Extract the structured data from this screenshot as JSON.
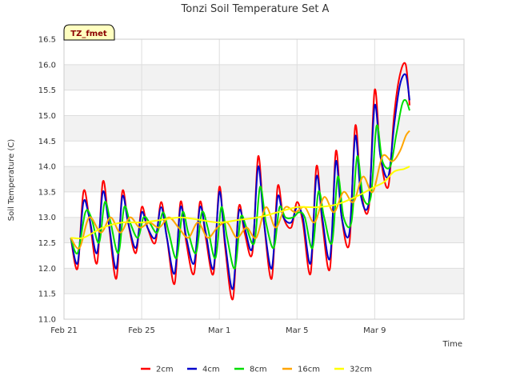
{
  "chart_data": {
    "type": "line",
    "title": "Tonzi Soil Temperature Set A",
    "xlabel": "Time",
    "ylabel": "Soil Temperature (C)",
    "badge": "TZ_fmet",
    "xlim": [
      0,
      20.6
    ],
    "ylim": [
      11.0,
      16.5
    ],
    "y_ticks": [
      11.0,
      11.5,
      12.0,
      12.5,
      13.0,
      13.5,
      14.0,
      14.5,
      15.0,
      15.5,
      16.0,
      16.5
    ],
    "x_ticks": [
      {
        "value": 0,
        "label": "Feb 21"
      },
      {
        "value": 4,
        "label": "Feb 25"
      },
      {
        "value": 8,
        "label": "Mar 1"
      },
      {
        "value": 12,
        "label": "Mar 5"
      },
      {
        "value": 16,
        "label": "Mar 9"
      }
    ],
    "grid": true,
    "legend_position": "bottom",
    "series": [
      {
        "name": "2cm",
        "color": "#ff0000",
        "x": [
          0.35,
          0.7,
          1.0,
          1.3,
          1.7,
          2.0,
          2.3,
          2.7,
          3.0,
          3.3,
          3.7,
          4.0,
          4.3,
          4.7,
          5.0,
          5.3,
          5.7,
          6.0,
          6.3,
          6.7,
          7.0,
          7.3,
          7.7,
          8.0,
          8.3,
          8.7,
          9.0,
          9.3,
          9.7,
          10.0,
          10.3,
          10.7,
          11.0,
          11.3,
          11.7,
          12.0,
          12.3,
          12.7,
          13.0,
          13.3,
          13.7,
          14.0,
          14.3,
          14.7,
          15.0,
          15.3,
          15.7,
          16.0,
          16.3,
          16.7,
          17.0,
          17.3,
          17.6,
          17.8
        ],
        "values": [
          12.6,
          12.0,
          13.5,
          13.0,
          12.1,
          13.7,
          12.9,
          11.8,
          13.5,
          12.9,
          12.3,
          13.2,
          12.8,
          12.5,
          13.3,
          12.6,
          11.7,
          13.3,
          12.5,
          11.9,
          13.3,
          12.6,
          11.9,
          13.6,
          12.4,
          11.4,
          13.2,
          12.7,
          12.3,
          14.2,
          12.9,
          11.8,
          13.6,
          13.0,
          12.8,
          13.3,
          12.9,
          11.9,
          14.0,
          12.9,
          12.0,
          14.3,
          13.0,
          12.5,
          14.8,
          13.5,
          13.2,
          15.5,
          14.2,
          13.6,
          15.0,
          15.8,
          16.0,
          15.2
        ]
      },
      {
        "name": "4cm",
        "color": "#0000cc",
        "x": [
          0.35,
          0.7,
          1.0,
          1.3,
          1.7,
          2.0,
          2.3,
          2.7,
          3.0,
          3.3,
          3.7,
          4.0,
          4.3,
          4.7,
          5.0,
          5.3,
          5.7,
          6.0,
          6.3,
          6.7,
          7.0,
          7.3,
          7.7,
          8.0,
          8.3,
          8.7,
          9.0,
          9.3,
          9.7,
          10.0,
          10.3,
          10.7,
          11.0,
          11.3,
          11.7,
          12.0,
          12.3,
          12.7,
          13.0,
          13.3,
          13.7,
          14.0,
          14.3,
          14.7,
          15.0,
          15.3,
          15.7,
          16.0,
          16.3,
          16.7,
          17.0,
          17.3,
          17.6,
          17.8
        ],
        "values": [
          12.6,
          12.1,
          13.3,
          13.0,
          12.3,
          13.5,
          12.9,
          12.0,
          13.4,
          12.9,
          12.4,
          13.1,
          12.8,
          12.6,
          13.2,
          12.6,
          11.9,
          13.2,
          12.6,
          12.1,
          13.2,
          12.7,
          12.0,
          13.5,
          12.5,
          11.6,
          13.1,
          12.8,
          12.4,
          14.0,
          12.9,
          12.0,
          13.4,
          13.0,
          12.9,
          13.2,
          13.0,
          12.1,
          13.8,
          13.0,
          12.2,
          14.1,
          13.0,
          12.7,
          14.6,
          13.4,
          13.3,
          15.2,
          14.2,
          13.8,
          14.8,
          15.6,
          15.8,
          15.3
        ]
      },
      {
        "name": "8cm",
        "color": "#00dd00",
        "x": [
          0.35,
          0.7,
          1.1,
          1.4,
          1.8,
          2.1,
          2.4,
          2.8,
          3.1,
          3.4,
          3.8,
          4.1,
          4.4,
          4.8,
          5.1,
          5.4,
          5.8,
          6.1,
          6.4,
          6.8,
          7.1,
          7.4,
          7.8,
          8.1,
          8.4,
          8.8,
          9.1,
          9.4,
          9.8,
          10.1,
          10.4,
          10.8,
          11.1,
          11.4,
          11.8,
          12.1,
          12.4,
          12.8,
          13.1,
          13.4,
          13.8,
          14.1,
          14.4,
          14.8,
          15.1,
          15.4,
          15.8,
          16.1,
          16.4,
          16.8,
          17.1,
          17.4,
          17.6,
          17.8
        ],
        "values": [
          12.6,
          12.3,
          13.1,
          13.0,
          12.5,
          13.3,
          12.9,
          12.3,
          13.2,
          12.9,
          12.6,
          13.0,
          12.9,
          12.7,
          13.1,
          12.7,
          12.2,
          13.1,
          12.7,
          12.3,
          13.1,
          12.8,
          12.2,
          13.2,
          12.6,
          12.0,
          13.0,
          12.8,
          12.5,
          13.6,
          12.9,
          12.4,
          13.2,
          13.0,
          13.0,
          13.1,
          13.0,
          12.4,
          13.5,
          13.0,
          12.5,
          13.8,
          13.0,
          12.9,
          14.2,
          13.4,
          13.4,
          14.8,
          14.1,
          14.0,
          14.6,
          15.2,
          15.3,
          15.1
        ]
      },
      {
        "name": "16cm",
        "color": "#ffa500",
        "x": [
          0.35,
          0.8,
          1.3,
          1.9,
          2.4,
          2.9,
          3.4,
          3.9,
          4.4,
          4.9,
          5.4,
          5.9,
          6.4,
          6.9,
          7.4,
          7.9,
          8.4,
          8.9,
          9.4,
          9.9,
          10.4,
          10.9,
          11.4,
          11.9,
          12.4,
          12.9,
          13.4,
          13.9,
          14.4,
          14.9,
          15.4,
          15.9,
          16.4,
          16.9,
          17.3,
          17.6,
          17.8
        ],
        "values": [
          12.6,
          12.4,
          13.0,
          12.7,
          13.0,
          12.7,
          13.0,
          12.8,
          12.9,
          12.8,
          13.0,
          12.8,
          12.6,
          12.9,
          12.6,
          12.8,
          12.9,
          12.6,
          12.8,
          12.6,
          13.2,
          12.8,
          13.2,
          13.1,
          13.2,
          12.9,
          13.4,
          13.1,
          13.5,
          13.3,
          13.8,
          13.5,
          14.2,
          14.1,
          14.3,
          14.6,
          14.7
        ]
      },
      {
        "name": "32cm",
        "color": "#ffff00",
        "x": [
          0.35,
          1.0,
          2.0,
          3.0,
          4.0,
          5.0,
          6.0,
          7.0,
          8.0,
          9.0,
          10.0,
          11.0,
          12.0,
          13.0,
          14.0,
          15.0,
          16.0,
          16.5,
          17.0,
          17.5,
          17.8
        ],
        "values": [
          12.6,
          12.6,
          12.8,
          12.9,
          12.9,
          12.95,
          13.0,
          12.95,
          12.9,
          12.95,
          13.0,
          13.1,
          13.2,
          13.2,
          13.25,
          13.4,
          13.6,
          13.7,
          13.9,
          13.95,
          14.0
        ]
      }
    ]
  }
}
